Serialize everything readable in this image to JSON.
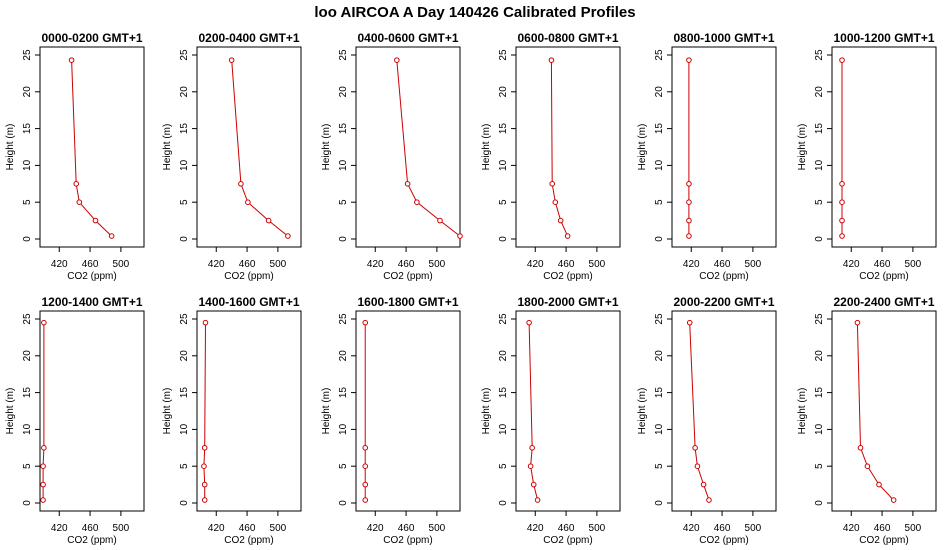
{
  "page_title": "loo AIRCOA A  Day 140426  Calibrated Profiles",
  "colors": {
    "series": "#cc0000",
    "axis": "#000000",
    "background": "#ffffff"
  },
  "chart_data": [
    {
      "type": "line",
      "title": "0000-0200 GMT+1",
      "xlabel": "CO2 (ppm)",
      "ylabel": "Height (m)",
      "xlim": [
        395,
        530
      ],
      "ylim": [
        0,
        25
      ],
      "xticks": [
        420,
        460,
        500
      ],
      "yticks": [
        0,
        5,
        10,
        15,
        20,
        25
      ],
      "grid": false,
      "series": [
        {
          "x": [
            436,
            442,
            446,
            467,
            488
          ],
          "y": [
            24.3,
            7.5,
            5.0,
            2.5,
            0.4
          ]
        }
      ]
    },
    {
      "type": "line",
      "title": "0200-0400 GMT+1",
      "xlabel": "CO2 (ppm)",
      "ylabel": "Height (m)",
      "xlim": [
        395,
        530
      ],
      "ylim": [
        0,
        25
      ],
      "xticks": [
        420,
        460,
        500
      ],
      "yticks": [
        0,
        5,
        10,
        15,
        20,
        25
      ],
      "grid": false,
      "series": [
        {
          "x": [
            440,
            452,
            461,
            488,
            513
          ],
          "y": [
            24.3,
            7.5,
            5.0,
            2.5,
            0.4
          ]
        }
      ]
    },
    {
      "type": "line",
      "title": "0400-0600 GMT+1",
      "xlabel": "CO2 (ppm)",
      "ylabel": "Height (m)",
      "xlim": [
        395,
        530
      ],
      "ylim": [
        0,
        25
      ],
      "xticks": [
        420,
        460,
        500
      ],
      "yticks": [
        0,
        5,
        10,
        15,
        20,
        25
      ],
      "grid": false,
      "series": [
        {
          "x": [
            448,
            462,
            474,
            504,
            530
          ],
          "y": [
            24.3,
            7.5,
            5.0,
            2.5,
            0.4
          ]
        }
      ]
    },
    {
      "type": "line",
      "title": "0600-0800 GMT+1",
      "xlabel": "CO2 (ppm)",
      "ylabel": "Height (m)",
      "xlim": [
        395,
        530
      ],
      "ylim": [
        0,
        25
      ],
      "xticks": [
        420,
        460,
        500
      ],
      "yticks": [
        0,
        5,
        10,
        15,
        20,
        25
      ],
      "grid": false,
      "series": [
        {
          "x": [
            441,
            442,
            446,
            453,
            462
          ],
          "y": [
            24.3,
            7.5,
            5.0,
            2.5,
            0.4
          ]
        }
      ]
    },
    {
      "type": "line",
      "title": "0800-1000 GMT+1",
      "xlabel": "CO2 (ppm)",
      "ylabel": "Height (m)",
      "xlim": [
        395,
        530
      ],
      "ylim": [
        0,
        25
      ],
      "xticks": [
        420,
        460,
        500
      ],
      "yticks": [
        0,
        5,
        10,
        15,
        20,
        25
      ],
      "grid": false,
      "series": [
        {
          "x": [
            417,
            417,
            417,
            417,
            417
          ],
          "y": [
            24.3,
            7.5,
            5.0,
            2.5,
            0.4
          ]
        }
      ]
    },
    {
      "type": "line",
      "title": "1000-1200 GMT+1",
      "xlabel": "CO2 (ppm)",
      "ylabel": "Height (m)",
      "xlim": [
        395,
        530
      ],
      "ylim": [
        0,
        25
      ],
      "xticks": [
        420,
        460,
        500
      ],
      "yticks": [
        0,
        5,
        10,
        15,
        20,
        25
      ],
      "grid": false,
      "series": [
        {
          "x": [
            408,
            408,
            408,
            408,
            408
          ],
          "y": [
            24.3,
            7.5,
            5.0,
            2.5,
            0.4
          ]
        }
      ]
    },
    {
      "type": "line",
      "title": "1200-1400 GMT+1",
      "xlabel": "CO2 (ppm)",
      "ylabel": "Height (m)",
      "xlim": [
        395,
        530
      ],
      "ylim": [
        0,
        25
      ],
      "xticks": [
        420,
        460,
        500
      ],
      "yticks": [
        0,
        5,
        10,
        15,
        20,
        25
      ],
      "grid": false,
      "series": [
        {
          "x": [
            400,
            400,
            399,
            399,
            399
          ],
          "y": [
            24.5,
            7.5,
            5.0,
            2.5,
            0.4
          ]
        }
      ]
    },
    {
      "type": "line",
      "title": "1400-1600 GMT+1",
      "xlabel": "CO2 (ppm)",
      "ylabel": "Height (m)",
      "xlim": [
        395,
        530
      ],
      "ylim": [
        0,
        25
      ],
      "xticks": [
        420,
        460,
        500
      ],
      "yticks": [
        0,
        5,
        10,
        15,
        20,
        25
      ],
      "grid": false,
      "series": [
        {
          "x": [
            406,
            405,
            404,
            405,
            405
          ],
          "y": [
            24.5,
            7.5,
            5.0,
            2.5,
            0.4
          ]
        }
      ]
    },
    {
      "type": "line",
      "title": "1600-1800 GMT+1",
      "xlabel": "CO2 (ppm)",
      "ylabel": "Height (m)",
      "xlim": [
        395,
        530
      ],
      "ylim": [
        0,
        25
      ],
      "xticks": [
        420,
        460,
        500
      ],
      "yticks": [
        0,
        5,
        10,
        15,
        20,
        25
      ],
      "grid": false,
      "series": [
        {
          "x": [
            407,
            407,
            407,
            407,
            407
          ],
          "y": [
            24.5,
            7.5,
            5.0,
            2.5,
            0.4
          ]
        }
      ]
    },
    {
      "type": "line",
      "title": "1800-2000 GMT+1",
      "xlabel": "CO2 (ppm)",
      "ylabel": "Height (m)",
      "xlim": [
        395,
        530
      ],
      "ylim": [
        0,
        25
      ],
      "xticks": [
        420,
        460,
        500
      ],
      "yticks": [
        0,
        5,
        10,
        15,
        20,
        25
      ],
      "grid": false,
      "series": [
        {
          "x": [
            412,
            416,
            414,
            418,
            423
          ],
          "y": [
            24.5,
            7.5,
            5.0,
            2.5,
            0.4
          ]
        }
      ]
    },
    {
      "type": "line",
      "title": "2000-2200 GMT+1",
      "xlabel": "CO2 (ppm)",
      "ylabel": "Height (m)",
      "xlim": [
        395,
        530
      ],
      "ylim": [
        0,
        25
      ],
      "xticks": [
        420,
        460,
        500
      ],
      "yticks": [
        0,
        5,
        10,
        15,
        20,
        25
      ],
      "grid": false,
      "series": [
        {
          "x": [
            418,
            425,
            428,
            436,
            443
          ],
          "y": [
            24.5,
            7.5,
            5.0,
            2.5,
            0.4
          ]
        }
      ]
    },
    {
      "type": "line",
      "title": "2200-2400 GMT+1",
      "xlabel": "CO2 (ppm)",
      "ylabel": "Height (m)",
      "xlim": [
        395,
        530
      ],
      "ylim": [
        0,
        25
      ],
      "xticks": [
        420,
        460,
        500
      ],
      "yticks": [
        0,
        5,
        10,
        15,
        20,
        25
      ],
      "grid": false,
      "series": [
        {
          "x": [
            428,
            432,
            441,
            456,
            475
          ],
          "y": [
            24.5,
            7.5,
            5.0,
            2.5,
            0.4
          ]
        }
      ]
    }
  ]
}
